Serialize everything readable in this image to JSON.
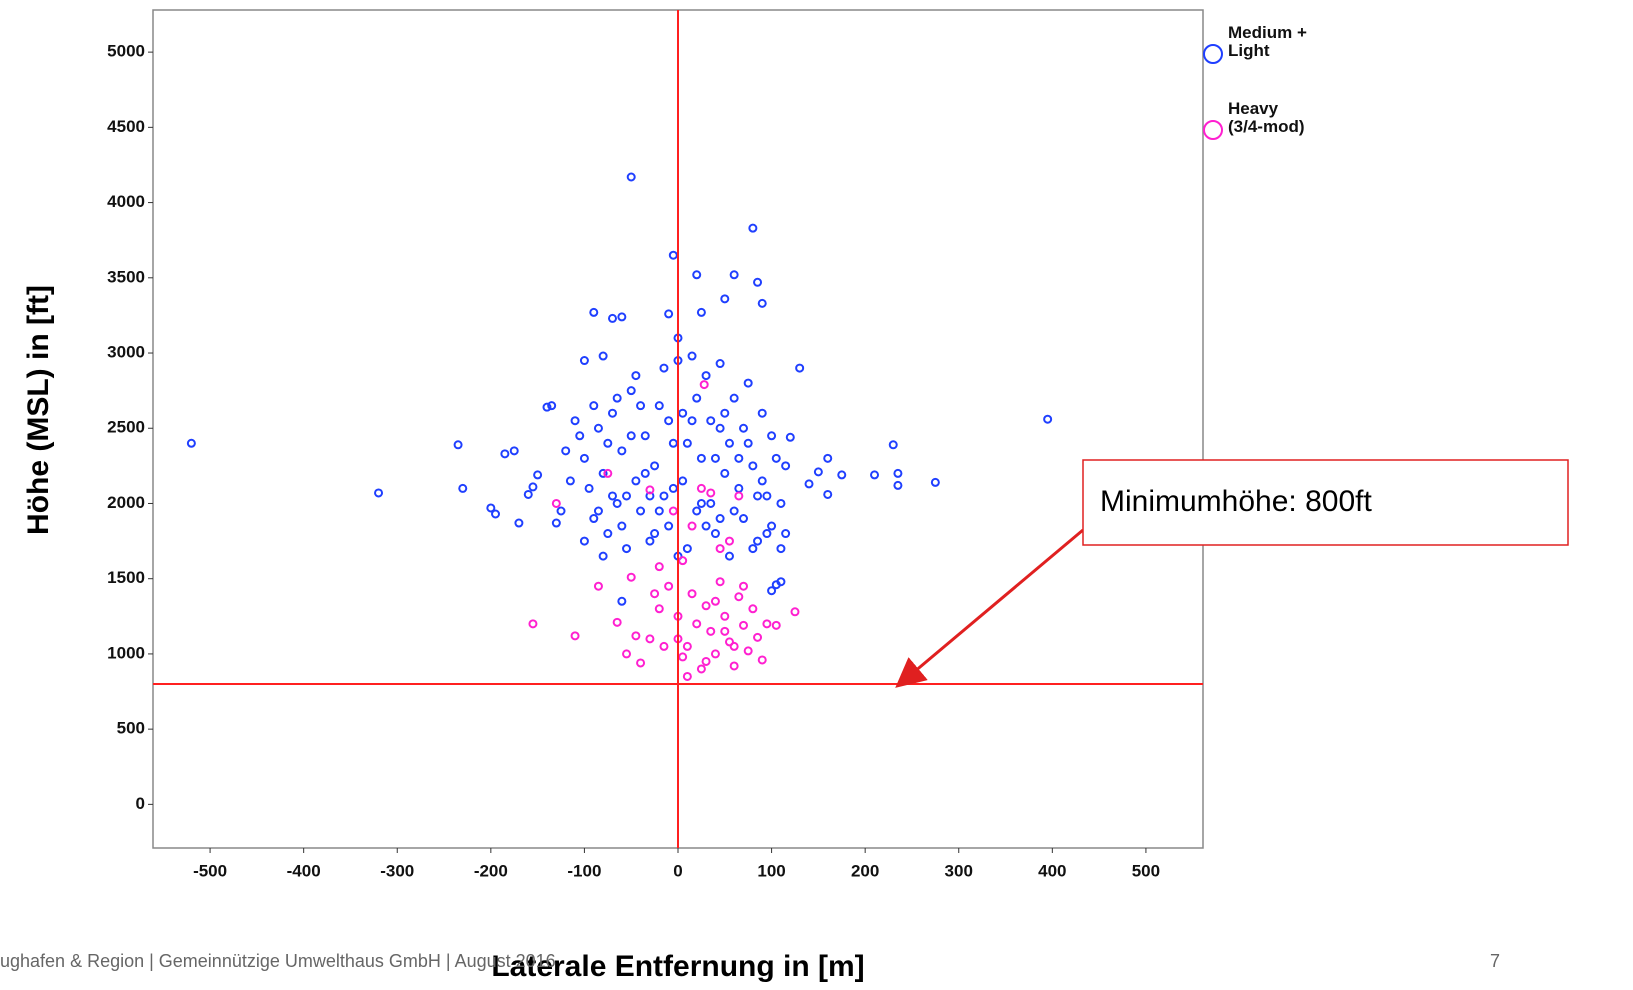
{
  "chart_data": {
    "type": "scatter",
    "x_label": "Laterale Entfernung in [m]",
    "y_label": "Höhe (MSL) in [ft]",
    "xlim": [
      -561,
      561
    ],
    "ylim": [
      -290,
      5280
    ],
    "xticks": [
      -500,
      -400,
      -300,
      -200,
      -100,
      0,
      100,
      200,
      300,
      400,
      500
    ],
    "yticks": [
      0,
      500,
      1000,
      1500,
      2000,
      2500,
      3000,
      3500,
      4000,
      4500,
      5000
    ],
    "grid": false,
    "legend_position": "right",
    "reference_lines": [
      {
        "axis": "x",
        "value": 0,
        "color": "#ff2020"
      },
      {
        "axis": "y",
        "value": 800,
        "color": "#ff2020"
      }
    ],
    "annotation": {
      "text": "Minimumhöhe: 800ft",
      "x": 237,
      "y": 800
    },
    "series": [
      {
        "name": "Medium + Light",
        "color": "#1f3fff",
        "x": [
          -520,
          -320,
          -235,
          -230,
          -200,
          -195,
          -185,
          -175,
          -160,
          -155,
          -150,
          -140,
          -135,
          -50,
          -5,
          80,
          20,
          60,
          85,
          -90,
          -70,
          -60,
          -10,
          25,
          50,
          90,
          -80,
          -100,
          0,
          130,
          160,
          175,
          210,
          230,
          235,
          235,
          275,
          395,
          140,
          150,
          160,
          120,
          115,
          110,
          105,
          110,
          100,
          -60,
          -170,
          -130,
          -100,
          -95,
          -90,
          -85,
          -80,
          -75,
          -70,
          -65,
          -60,
          -55,
          -50,
          -45,
          -40,
          -35,
          -30,
          -25,
          -20,
          -15,
          -10,
          -5,
          0,
          5,
          10,
          15,
          20,
          25,
          30,
          35,
          40,
          45,
          50,
          55,
          60,
          65,
          70,
          75,
          80,
          85,
          90,
          95,
          100,
          105,
          110,
          -105,
          -100,
          -90,
          -80,
          -70,
          -60,
          -50,
          -40,
          -30,
          -20,
          -10,
          0,
          10,
          20,
          30,
          40,
          50,
          60,
          70,
          80,
          90,
          100,
          -115,
          -120,
          -125,
          -110,
          -45,
          -15,
          15,
          45,
          75,
          -65,
          5,
          35,
          65,
          -35,
          -5,
          25,
          55,
          85,
          -85,
          -55,
          -25,
          45,
          95,
          115,
          -75
        ],
        "values": [
          2400,
          2070,
          2390,
          2100,
          1970,
          1930,
          2330,
          2350,
          2060,
          2110,
          2190,
          2640,
          2650,
          4170,
          3650,
          3830,
          3520,
          3520,
          3470,
          3270,
          3230,
          3240,
          3260,
          3270,
          3360,
          3330,
          2980,
          2950,
          3100,
          2900,
          2300,
          2190,
          2190,
          2390,
          2200,
          2120,
          2140,
          2560,
          2130,
          2210,
          2060,
          2440,
          1800,
          1700,
          1460,
          1480,
          1420,
          1350,
          1870,
          1870,
          2300,
          2100,
          1900,
          2500,
          2200,
          1800,
          2600,
          2000,
          2350,
          1700,
          2750,
          2150,
          1950,
          2450,
          1750,
          2250,
          2650,
          2050,
          1850,
          2400,
          2950,
          2150,
          1700,
          2550,
          1950,
          2300,
          2850,
          2000,
          1800,
          2500,
          2200,
          1650,
          2700,
          2100,
          1900,
          2400,
          2250,
          1750,
          2600,
          2050,
          1850,
          2300,
          2000,
          2450,
          1750,
          2650,
          1650,
          2050,
          1850,
          2450,
          2650,
          2050,
          1950,
          2550,
          1650,
          2400,
          2700,
          1850,
          2300,
          2600,
          1950,
          2500,
          1700,
          2150,
          2450,
          2150,
          2350,
          1950,
          2550,
          2850,
          2900,
          2980,
          2930,
          2800,
          2700,
          2600,
          2550,
          2300,
          2200,
          2100,
          2000,
          2400,
          2050,
          1950,
          2050,
          1800,
          1900,
          1800,
          2250,
          2400
        ]
      },
      {
        "name": "Heavy (3/4-mod)",
        "color": "#ff20d0",
        "x": [
          -155,
          -110,
          -85,
          -65,
          -55,
          -50,
          -40,
          -30,
          -20,
          -10,
          0,
          5,
          10,
          15,
          20,
          25,
          30,
          35,
          40,
          45,
          50,
          55,
          60,
          65,
          70,
          75,
          80,
          85,
          90,
          95,
          105,
          125,
          -20,
          5,
          15,
          25,
          35,
          -30,
          -75,
          -130,
          45,
          -5,
          55,
          65,
          28,
          10,
          -45,
          -25,
          40,
          60,
          70,
          -15,
          50,
          0,
          30
        ],
        "values": [
          1200,
          1120,
          1450,
          1210,
          1000,
          1510,
          940,
          1100,
          1300,
          1450,
          1250,
          980,
          1050,
          1400,
          1200,
          900,
          1320,
          1150,
          1000,
          1480,
          1250,
          1080,
          920,
          1380,
          1190,
          1020,
          1300,
          1110,
          960,
          1200,
          1190,
          1280,
          1580,
          1620,
          1850,
          2100,
          2070,
          2090,
          2200,
          2000,
          1700,
          1950,
          1750,
          2050,
          2790,
          850,
          1120,
          1400,
          1350,
          1050,
          1450,
          1050,
          1150,
          1100,
          950
        ]
      }
    ]
  },
  "footer": {
    "text": "ughafen & Region  |  Gemeinnützige Umwelthaus GmbH  |  August 2016",
    "page": "7"
  }
}
